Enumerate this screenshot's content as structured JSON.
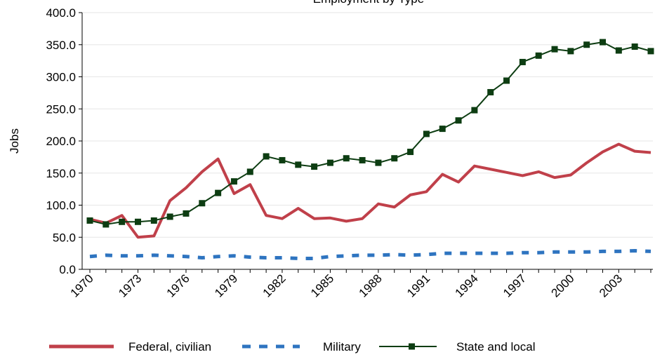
{
  "chart_data": {
    "type": "line",
    "title": "Employment by Type",
    "y_label": "Jobs",
    "categories": [
      "1970",
      null,
      null,
      "1973",
      null,
      null,
      "1976",
      null,
      null,
      "1979",
      null,
      null,
      "1982",
      null,
      null,
      "1985",
      null,
      null,
      "1988",
      null,
      null,
      "1991",
      null,
      null,
      "1994",
      null,
      null,
      "1997",
      null,
      null,
      "2000",
      null,
      null,
      "2003",
      null,
      null
    ],
    "series": [
      {
        "name": "Federal, civilian",
        "color": "#c0404a",
        "style": "solid",
        "values": [
          78,
          72,
          84,
          50,
          52,
          107,
          127,
          152,
          172,
          118,
          132,
          84,
          79,
          95,
          79,
          80,
          75,
          79,
          102,
          97,
          116,
          121,
          148,
          136,
          161,
          156,
          151,
          146,
          152,
          143,
          147,
          166,
          183,
          195,
          184,
          182
        ]
      },
      {
        "name": "Military",
        "color": "#2e74c0",
        "style": "dashed",
        "values": [
          20,
          22,
          21,
          21,
          22,
          21,
          20,
          18,
          20,
          21,
          19,
          18,
          18,
          17,
          17,
          20,
          21,
          22,
          22,
          23,
          22,
          23,
          25,
          25,
          25,
          25,
          25,
          26,
          26,
          27,
          27,
          27,
          28,
          28,
          29,
          28
        ]
      },
      {
        "name": "State and local",
        "color": "#0d3d12",
        "style": "markers",
        "values": [
          76,
          70,
          74,
          74,
          76,
          82,
          87,
          103,
          119,
          137,
          152,
          176,
          170,
          163,
          160,
          166,
          173,
          170,
          166,
          173,
          183,
          211,
          219,
          232,
          248,
          276,
          294,
          323,
          333,
          343,
          340,
          350,
          354,
          341,
          347,
          340
        ]
      }
    ],
    "ylim": [
      0,
      400
    ],
    "yticks": [
      {
        "value": 0,
        "label": "0.0"
      },
      {
        "value": 50,
        "label": "50.0"
      },
      {
        "value": 100,
        "label": "100.0"
      },
      {
        "value": 150,
        "label": "150.0"
      },
      {
        "value": 200,
        "label": "200.0"
      },
      {
        "value": 250,
        "label": "250.0"
      },
      {
        "value": 300,
        "label": "300.0"
      },
      {
        "value": 350,
        "label": "350.0"
      },
      {
        "value": 400,
        "label": "400.0"
      }
    ],
    "grid": true,
    "legend": "bottom"
  }
}
